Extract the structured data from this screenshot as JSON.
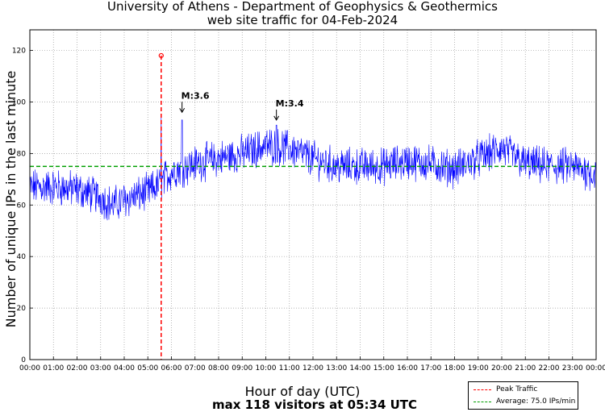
{
  "chart_data": {
    "type": "line",
    "title": "University of Athens - Department of Geophysics & Geothermics",
    "subtitle": "web site traffic for 04-Feb-2024",
    "xlabel": "Hour of day (UTC)",
    "ylabel": "Number of unique IPs in the last minute",
    "footer": "max 118 visitors at 05:34 UTC",
    "xlim": [
      0,
      24
    ],
    "ylim": [
      0,
      128
    ],
    "x_tick_labels": [
      "00:00",
      "01:00",
      "02:00",
      "03:00",
      "04:00",
      "05:00",
      "06:00",
      "07:00",
      "08:00",
      "09:00",
      "10:00",
      "11:00",
      "12:00",
      "13:00",
      "14:00",
      "15:00",
      "16:00",
      "17:00",
      "18:00",
      "19:00",
      "20:00",
      "21:00",
      "22:00",
      "23:00",
      "00:00"
    ],
    "y_ticks": [
      0,
      20,
      40,
      60,
      80,
      100,
      120
    ],
    "grid": true,
    "series": [
      {
        "name": "unique IPs",
        "color": "#0000ff",
        "trend_hours": [
          0,
          1,
          2,
          3,
          3.5,
          4,
          5,
          5.5,
          6,
          7,
          8,
          9,
          10,
          11,
          12,
          13,
          14,
          15,
          16,
          17,
          18,
          19,
          20,
          21,
          22,
          23,
          24
        ],
        "trend_values": [
          67,
          67,
          66,
          63,
          60,
          62,
          65,
          68,
          73,
          76,
          78,
          80,
          83,
          82,
          78,
          75,
          75,
          75,
          77,
          76,
          74,
          78,
          82,
          76,
          75,
          75,
          72
        ],
        "noise_amplitude": 6
      }
    ],
    "peak": {
      "label": "Peak Traffic",
      "hour": 5.567,
      "value": 118,
      "color": "#ff0000"
    },
    "average": {
      "label": "Average: 75.0 IPs/min",
      "value": 75.0,
      "color": "#00a000"
    },
    "annotations": [
      {
        "text": "M:3.6",
        "hour": 6.45,
        "value": 101
      },
      {
        "text": "M:3.4",
        "hour": 10.45,
        "value": 98
      }
    ],
    "legend_position": "bottom-right"
  }
}
